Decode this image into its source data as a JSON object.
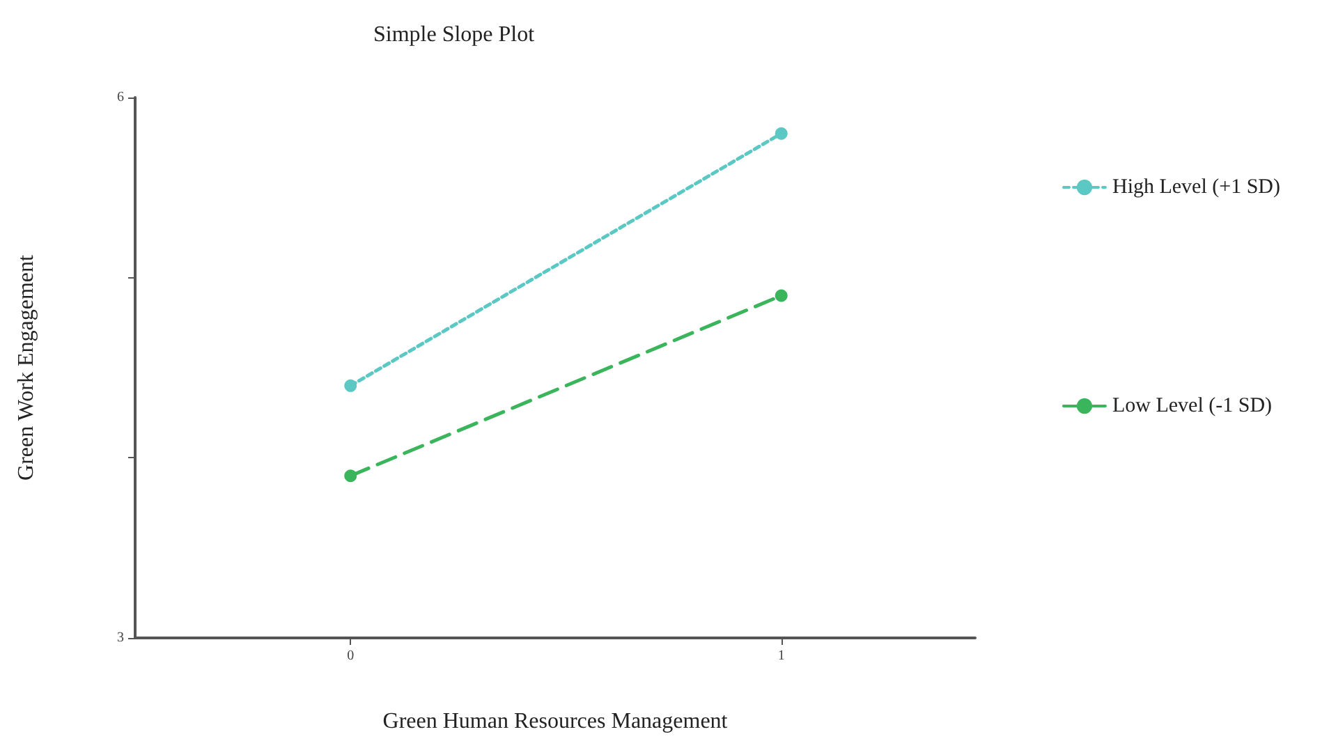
{
  "chart_data": {
    "type": "line",
    "title": "Simple Slope Plot",
    "xlabel": "Green Human Resources Management",
    "ylabel": "Green Work Engagement",
    "x": [
      0,
      1
    ],
    "series": [
      {
        "name": "High Level (+1 SD)",
        "color": "#5cc8c4",
        "values": [
          4.4,
          5.8
        ],
        "line_style": "dotted"
      },
      {
        "name": "Low Level (-1 SD)",
        "color": "#3bb55c",
        "values": [
          3.9,
          4.9
        ],
        "line_style": "dashed"
      }
    ],
    "xlim": [
      -0.5,
      1.45
    ],
    "xticks": [
      0,
      1
    ],
    "ylim": [
      3,
      6
    ],
    "yticks": [
      3,
      {
        "value": 4,
        "label": null
      },
      {
        "value": 5,
        "label": null
      },
      6
    ],
    "grid": false,
    "legend": "right",
    "marker": "circle"
  }
}
